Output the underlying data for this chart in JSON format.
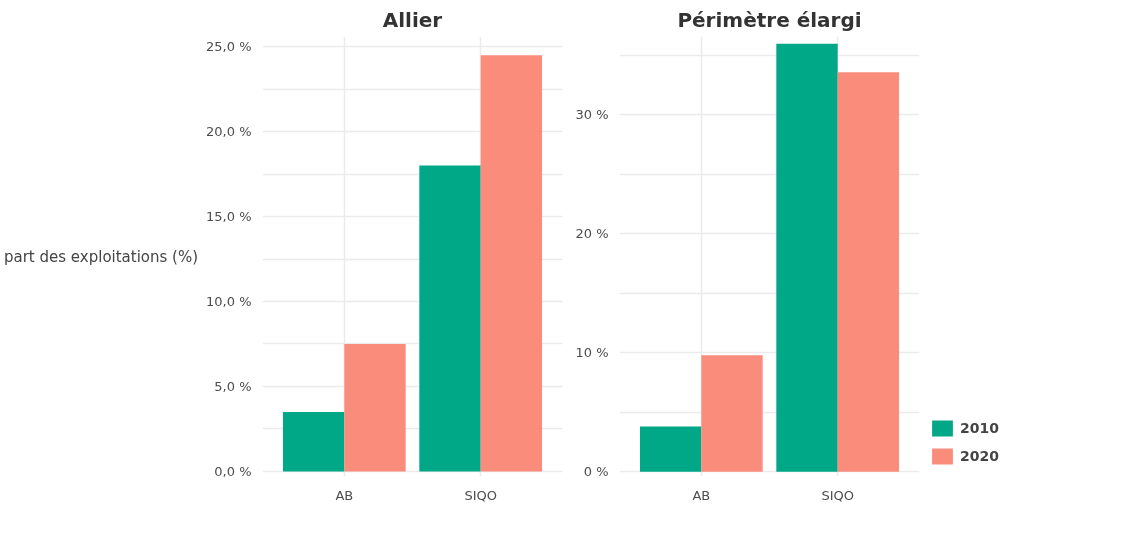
{
  "chart_data": [
    {
      "type": "bar",
      "title": "Allier",
      "ylabel": "part des exploitations (%)",
      "categories": [
        "AB",
        "SIQO"
      ],
      "series": [
        {
          "color": "#00a887",
          "values": [
            3.5,
            18.0
          ]
        },
        {
          "color": "#fa8c7c",
          "values": [
            7.5,
            24.5
          ]
        }
      ],
      "ylim": [
        -0.3,
        25.6
      ],
      "yticks": [
        {
          "value": 0,
          "label": "0,0 %"
        },
        {
          "value": 2.5,
          "label": null
        },
        {
          "value": 5,
          "label": "5,0 %"
        },
        {
          "value": 7.5,
          "label": null
        },
        {
          "value": 10,
          "label": "10,0 %"
        },
        {
          "value": 12.5,
          "label": null
        },
        {
          "value": 15,
          "label": "15,0 %"
        },
        {
          "value": 17.5,
          "label": null
        },
        {
          "value": 20,
          "label": "20,0 %"
        },
        {
          "value": 22.5,
          "label": null
        },
        {
          "value": 25,
          "label": "25,0 %"
        }
      ],
      "grid": true,
      "legend": false
    },
    {
      "type": "bar",
      "title": "Périmètre élargi",
      "categories": [
        "AB",
        "SIQO"
      ],
      "series": [
        {
          "name": "2010",
          "color": "#00a887",
          "values": [
            3.8,
            36.0
          ]
        },
        {
          "name": "2020",
          "color": "#fa8c7c",
          "values": [
            9.8,
            33.6
          ]
        }
      ],
      "ylim": [
        -0.4,
        36.6
      ],
      "yticks": [
        {
          "value": 0,
          "label": "0 %"
        },
        {
          "value": 5,
          "label": null
        },
        {
          "value": 10,
          "label": "10 %"
        },
        {
          "value": 15,
          "label": null
        },
        {
          "value": 20,
          "label": "20 %"
        },
        {
          "value": 25,
          "label": null
        },
        {
          "value": 30,
          "label": "30 %"
        },
        {
          "value": 35,
          "label": null
        }
      ],
      "grid": true,
      "legend": "right"
    }
  ]
}
